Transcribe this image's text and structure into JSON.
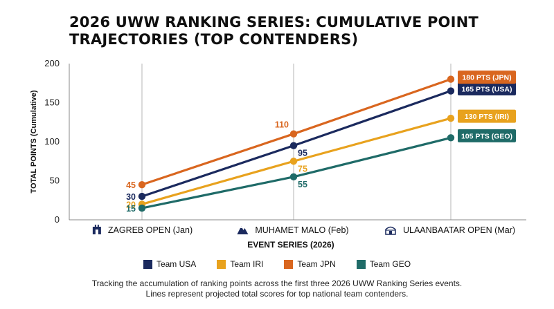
{
  "title": "2026 UWW RANKING SERIES: CUMULATIVE POINT TRAJECTORIES (TOP CONTENDERS)",
  "footnote": {
    "line1": "Tracking the accumulation of ranking points across the first three 2026 UWW Ranking Series events.",
    "line2": "Lines represent projected total scores for top national team contenders."
  },
  "chart_data": {
    "type": "line",
    "xlabel": "EVENT SERIES (2026)",
    "ylabel": "TOTAL POINTS (Cumulative)",
    "ylim": [
      0,
      200
    ],
    "yticks": [
      0,
      50,
      100,
      150,
      200
    ],
    "grid": "vertical lines at each event",
    "legend": "bottom",
    "categories": [
      "ZAGREB OPEN (Jan)",
      "MUHAMET MALO (Feb)",
      "ULAANBAATAR OPEN (Mar)"
    ],
    "category_icons": [
      "castle-icon",
      "mountain-icon",
      "yurt-icon"
    ],
    "series": [
      {
        "name": "Team USA",
        "values": [
          30,
          95,
          165
        ],
        "color": "#1b2a5e",
        "end_label": "165 PTS (USA)",
        "point_labels": [
          "30",
          "95",
          ""
        ]
      },
      {
        "name": "Team IRI",
        "values": [
          20,
          75,
          130
        ],
        "color": "#e8a21e",
        "end_label": "130 PTS (IRI)",
        "point_labels": [
          "20",
          "75",
          ""
        ]
      },
      {
        "name": "Team JPN",
        "values": [
          45,
          110,
          180
        ],
        "color": "#d9661f",
        "end_label": "180 PTS (JPN)",
        "point_labels": [
          "45",
          "110",
          ""
        ]
      },
      {
        "name": "Team GEO",
        "values": [
          15,
          55,
          105
        ],
        "color": "#1f6b68",
        "end_label": "105 PTS (GEO)",
        "point_labels": [
          "15",
          "55",
          ""
        ]
      }
    ]
  }
}
